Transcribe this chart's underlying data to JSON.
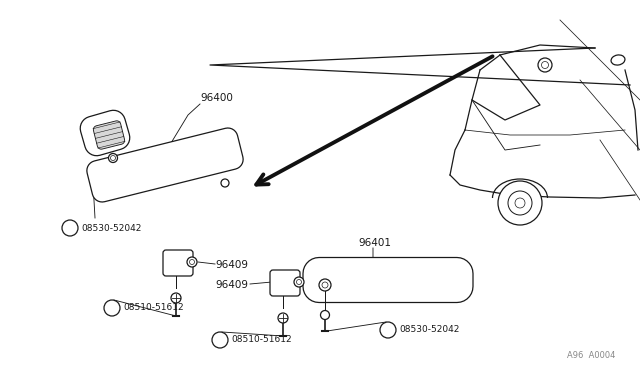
{
  "bg_color": "#ffffff",
  "line_color": "#1a1a1a",
  "gray_color": "#888888",
  "figure_note": "A96  A0004",
  "label_96400": "96400",
  "label_96401": "96401",
  "label_96409": "96409",
  "label_08530": "08530-52042",
  "label_08510": "08510-51612"
}
